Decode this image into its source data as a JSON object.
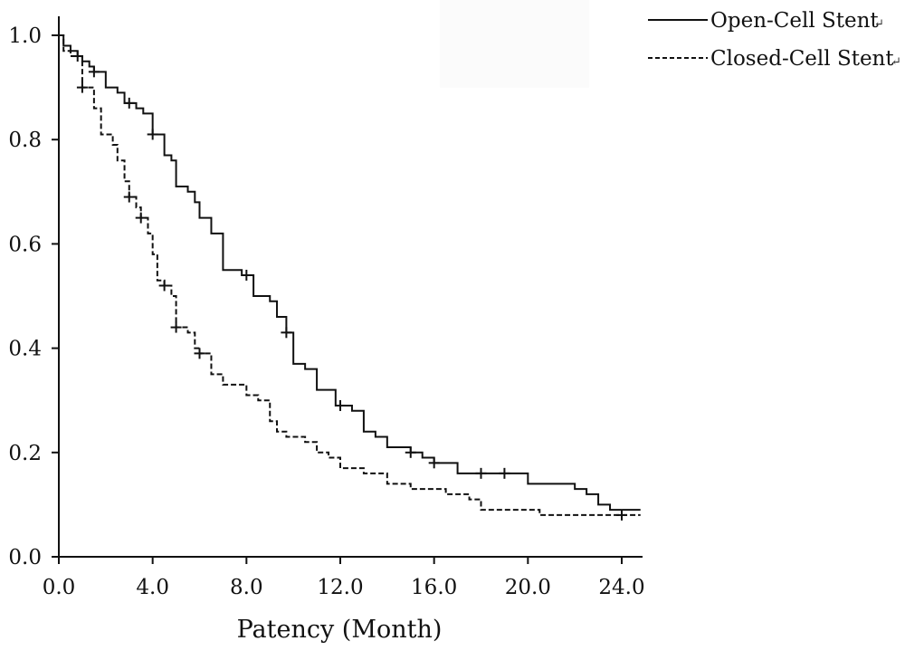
{
  "chart_data": {
    "type": "line",
    "title": "",
    "xlabel": "Patency (Month)",
    "ylabel": "",
    "xlim": [
      0,
      24.8
    ],
    "ylim": [
      0,
      1.0
    ],
    "x_ticks": [
      "0.0",
      "4.0",
      "8.0",
      "12.0",
      "16.0",
      "20.0",
      "24.0"
    ],
    "y_ticks": [
      "0.0",
      "0.2",
      "0.4",
      "0.6",
      "0.8",
      "1.0"
    ],
    "grid": false,
    "legend_position": "top-right",
    "series": [
      {
        "name": "Open-Cell Stent",
        "line_style": "solid",
        "color": "#111111",
        "step_points": [
          [
            0,
            1.0
          ],
          [
            0.2,
            0.98
          ],
          [
            0.5,
            0.97
          ],
          [
            0.8,
            0.96
          ],
          [
            1.0,
            0.95
          ],
          [
            1.3,
            0.94
          ],
          [
            1.5,
            0.93
          ],
          [
            2.0,
            0.9
          ],
          [
            2.5,
            0.89
          ],
          [
            2.8,
            0.87
          ],
          [
            3.3,
            0.86
          ],
          [
            3.6,
            0.85
          ],
          [
            4.0,
            0.81
          ],
          [
            4.5,
            0.77
          ],
          [
            4.8,
            0.76
          ],
          [
            5.0,
            0.71
          ],
          [
            5.5,
            0.7
          ],
          [
            5.8,
            0.68
          ],
          [
            6.0,
            0.65
          ],
          [
            6.5,
            0.62
          ],
          [
            7.0,
            0.55
          ],
          [
            7.8,
            0.54
          ],
          [
            8.3,
            0.5
          ],
          [
            9.0,
            0.49
          ],
          [
            9.3,
            0.46
          ],
          [
            9.7,
            0.43
          ],
          [
            10.0,
            0.37
          ],
          [
            10.5,
            0.36
          ],
          [
            11.0,
            0.32
          ],
          [
            11.8,
            0.29
          ],
          [
            12.5,
            0.28
          ],
          [
            13.0,
            0.24
          ],
          [
            13.5,
            0.23
          ],
          [
            14.0,
            0.21
          ],
          [
            15.0,
            0.2
          ],
          [
            15.5,
            0.19
          ],
          [
            16.0,
            0.18
          ],
          [
            17.0,
            0.16
          ],
          [
            20.0,
            0.14
          ],
          [
            22.0,
            0.13
          ],
          [
            22.5,
            0.12
          ],
          [
            23.0,
            0.1
          ],
          [
            23.5,
            0.09
          ],
          [
            24.8,
            0.09
          ]
        ],
        "censor_x": [
          0.8,
          1.5,
          3.0,
          4.0,
          8.0,
          9.7,
          12.0,
          15.0,
          16.0,
          18.0,
          19.0
        ]
      },
      {
        "name": "Closed-Cell Stent",
        "line_style": "dashed",
        "color": "#111111",
        "step_points": [
          [
            0,
            1.0
          ],
          [
            0.2,
            0.97
          ],
          [
            0.5,
            0.96
          ],
          [
            1.0,
            0.9
          ],
          [
            1.5,
            0.86
          ],
          [
            1.8,
            0.81
          ],
          [
            2.3,
            0.79
          ],
          [
            2.5,
            0.76
          ],
          [
            2.8,
            0.72
          ],
          [
            3.0,
            0.69
          ],
          [
            3.3,
            0.67
          ],
          [
            3.5,
            0.65
          ],
          [
            3.8,
            0.62
          ],
          [
            4.0,
            0.58
          ],
          [
            4.2,
            0.53
          ],
          [
            4.5,
            0.52
          ],
          [
            4.8,
            0.5
          ],
          [
            5.0,
            0.44
          ],
          [
            5.5,
            0.43
          ],
          [
            5.8,
            0.4
          ],
          [
            6.0,
            0.39
          ],
          [
            6.5,
            0.35
          ],
          [
            7.0,
            0.33
          ],
          [
            8.0,
            0.31
          ],
          [
            8.5,
            0.3
          ],
          [
            9.0,
            0.26
          ],
          [
            9.3,
            0.24
          ],
          [
            9.7,
            0.23
          ],
          [
            10.5,
            0.22
          ],
          [
            11.0,
            0.2
          ],
          [
            11.5,
            0.19
          ],
          [
            12.0,
            0.17
          ],
          [
            13.0,
            0.16
          ],
          [
            14.0,
            0.14
          ],
          [
            15.0,
            0.13
          ],
          [
            16.5,
            0.12
          ],
          [
            17.5,
            0.11
          ],
          [
            18.0,
            0.09
          ],
          [
            20.0,
            0.09
          ],
          [
            20.5,
            0.08
          ],
          [
            24.8,
            0.08
          ]
        ],
        "censor_x": [
          1.0,
          3.0,
          3.5,
          4.5,
          5.0,
          6.0,
          24.0
        ]
      }
    ]
  },
  "legend": {
    "items": [
      {
        "label": "Open-Cell Stent",
        "return_glyph": "↵"
      },
      {
        "label": "Closed-Cell Stent",
        "return_glyph": "↵"
      }
    ]
  }
}
